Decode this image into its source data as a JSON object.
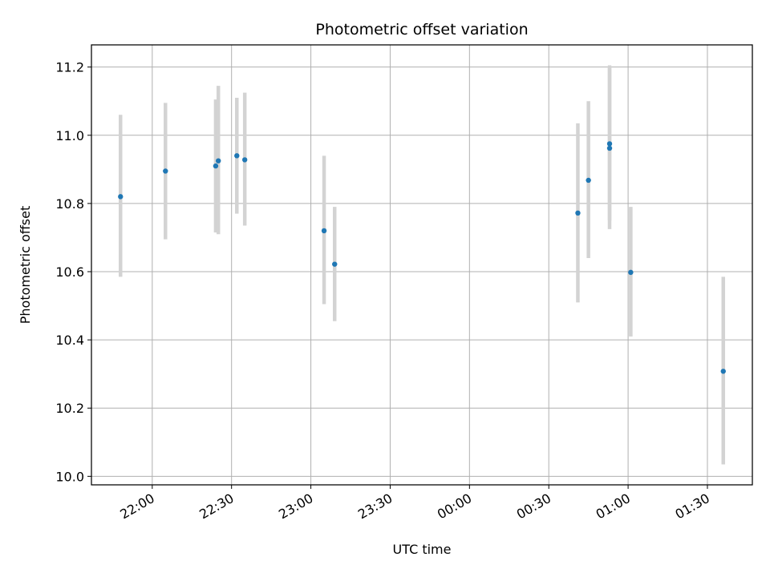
{
  "chart_data": {
    "type": "scatter",
    "title": "Photometric offset variation",
    "xlabel": "UTC time",
    "ylabel": "Photometric offset",
    "x_axis": "time (HH:MM, spanning midnight; times after 00:00 are on the following day)",
    "xlim": [
      "21:37",
      "01:47"
    ],
    "ylim": [
      9.975,
      11.265
    ],
    "x_ticks": [
      "22:00",
      "22:30",
      "23:00",
      "23:30",
      "00:00",
      "00:30",
      "01:00",
      "01:30"
    ],
    "y_ticks": [
      "10.0",
      "10.2",
      "10.4",
      "10.6",
      "10.8",
      "11.0",
      "11.2"
    ],
    "grid": true,
    "colors": {
      "points": "#1f77b4",
      "errorbars": "#d3d3d3",
      "grid": "#b0b0b0"
    },
    "points": [
      {
        "x": "21:48",
        "y": 10.82,
        "ylow": 10.585,
        "yhigh": 11.06
      },
      {
        "x": "22:05",
        "y": 10.895,
        "ylow": 10.695,
        "yhigh": 11.095
      },
      {
        "x": "22:24",
        "y": 10.91,
        "ylow": 10.715,
        "yhigh": 11.105
      },
      {
        "x": "22:25",
        "y": 10.925,
        "ylow": 10.71,
        "yhigh": 11.145
      },
      {
        "x": "22:32",
        "y": 10.94,
        "ylow": 10.77,
        "yhigh": 11.11
      },
      {
        "x": "22:35",
        "y": 10.928,
        "ylow": 10.735,
        "yhigh": 11.125
      },
      {
        "x": "23:05",
        "y": 10.72,
        "ylow": 10.505,
        "yhigh": 10.94
      },
      {
        "x": "23:09",
        "y": 10.622,
        "ylow": 10.455,
        "yhigh": 10.79
      },
      {
        "x": "00:41",
        "y": 10.772,
        "ylow": 10.51,
        "yhigh": 11.035
      },
      {
        "x": "00:45",
        "y": 10.868,
        "ylow": 10.64,
        "yhigh": 11.1
      },
      {
        "x": "00:53",
        "y": 10.962,
        "ylow": 10.725,
        "yhigh": 11.205
      },
      {
        "x": "00:53",
        "y": 10.975,
        "ylow": 10.75,
        "yhigh": 11.2
      },
      {
        "x": "01:01",
        "y": 10.598,
        "ylow": 10.41,
        "yhigh": 10.79
      },
      {
        "x": "01:36",
        "y": 10.308,
        "ylow": 10.035,
        "yhigh": 10.585
      }
    ]
  }
}
